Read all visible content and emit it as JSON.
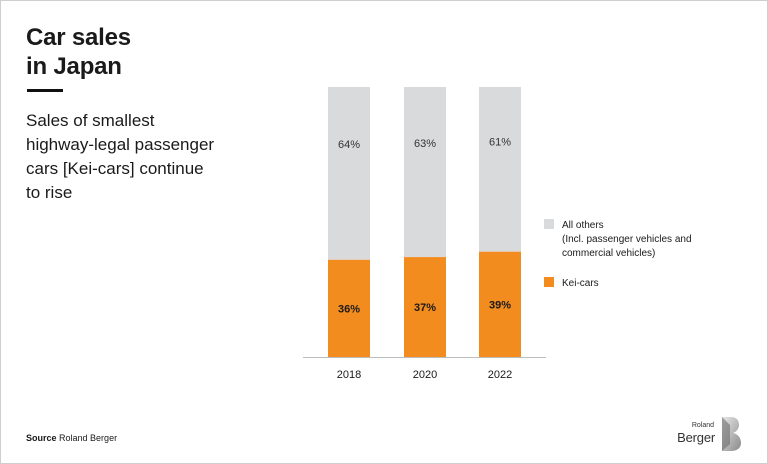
{
  "title_line1": "Car sales",
  "title_line2": "in Japan",
  "subtitle": "Sales of smallest highway-legal passenger cars [Kei-cars] continue to rise",
  "source_label": "Source",
  "source_text": "Roland Berger",
  "logo": {
    "small": "Roland",
    "big": "Berger"
  },
  "colors": {
    "kei": "#f28c1e",
    "others": "#d9dadb",
    "axis": "#bdbdbd"
  },
  "chart_data": {
    "type": "bar",
    "stacked": true,
    "normalized_percent": true,
    "categories": [
      "2018",
      "2020",
      "2022"
    ],
    "series": [
      {
        "name": "Kei-cars",
        "values": [
          36,
          37,
          39
        ],
        "labels": [
          "36%",
          "37%",
          "39%"
        ]
      },
      {
        "name": "All others",
        "values": [
          64,
          63,
          61
        ],
        "labels": [
          "64%",
          "63%",
          "61%"
        ]
      }
    ],
    "legend": [
      {
        "name": "All others",
        "lines": [
          "All others",
          "(Incl. passenger vehicles and",
          "commercial vehicles)"
        ]
      },
      {
        "name": "Kei-cars",
        "lines": [
          "Kei-cars"
        ]
      }
    ],
    "legend_position": "right",
    "ylim": [
      0,
      100
    ],
    "grid": false
  }
}
